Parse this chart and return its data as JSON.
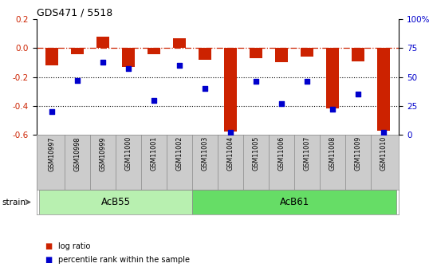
{
  "title": "GDS471 / 5518",
  "samples": [
    "GSM10997",
    "GSM10998",
    "GSM10999",
    "GSM11000",
    "GSM11001",
    "GSM11002",
    "GSM11003",
    "GSM11004",
    "GSM11005",
    "GSM11006",
    "GSM11007",
    "GSM11008",
    "GSM11009",
    "GSM11010"
  ],
  "log_ratio": [
    -0.12,
    -0.04,
    0.08,
    -0.13,
    -0.04,
    0.07,
    -0.08,
    -0.58,
    -0.07,
    -0.1,
    -0.06,
    -0.42,
    -0.09,
    -0.57
  ],
  "percentile_rank": [
    20,
    47,
    63,
    57,
    30,
    60,
    40,
    2,
    46,
    27,
    46,
    22,
    35,
    2
  ],
  "groups": [
    {
      "label": "AcB55",
      "start": 0,
      "end": 6
    },
    {
      "label": "AcB61",
      "start": 6,
      "end": 14
    }
  ],
  "group_colors": [
    "#b8f0b0",
    "#66dd66"
  ],
  "ylim_left": [
    -0.6,
    0.2
  ],
  "ylim_right": [
    0,
    100
  ],
  "yticks_left": [
    0.2,
    0.0,
    -0.2,
    -0.4,
    -0.6
  ],
  "yticks_right": [
    100,
    75,
    50,
    25,
    0
  ],
  "bar_color": "#cc2200",
  "dot_color": "#0000cc",
  "dotted_lines": [
    -0.2,
    -0.4
  ],
  "bar_width": 0.5,
  "dot_size": 22,
  "strain_label": "strain",
  "legend_items": [
    {
      "label": "log ratio",
      "color": "#cc2200"
    },
    {
      "label": "percentile rank within the sample",
      "color": "#0000cc"
    }
  ]
}
